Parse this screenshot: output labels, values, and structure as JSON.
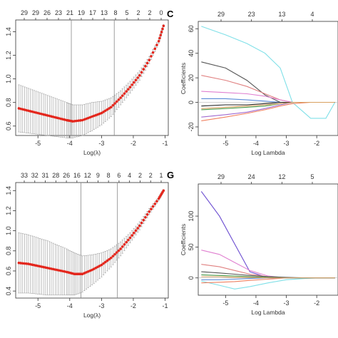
{
  "panel_letters": [
    "C",
    "G"
  ],
  "chart_data": [
    {
      "type": "scatter",
      "error_bars": true,
      "xlabel": "Log(λ)",
      "ylabel": "",
      "x_ticks": [
        "-5",
        "-4",
        "-3",
        "-2",
        "-1"
      ],
      "y_ticks": [
        "0.6",
        "0.8",
        "1.0",
        "1.2",
        "1.4"
      ],
      "top_ticks": [
        "29",
        "29",
        "26",
        "23",
        "21",
        "19",
        "17",
        "13",
        "8",
        "5",
        "2",
        "2",
        "0"
      ],
      "xlim": [
        -5.7,
        -0.9
      ],
      "ylim": [
        0.52,
        1.5
      ],
      "vlines": [
        -3.95,
        -2.6
      ],
      "colors": {
        "points": "#e3261c",
        "bars": "#9b9b9b"
      },
      "x": [
        -5.6,
        -5.3,
        -5.0,
        -4.7,
        -4.4,
        -4.1,
        -3.9,
        -3.6,
        -3.3,
        -3.0,
        -2.7,
        -2.4,
        -2.1,
        -1.8,
        -1.5,
        -1.2,
        -1.05
      ],
      "y": [
        0.75,
        0.73,
        0.71,
        0.69,
        0.67,
        0.65,
        0.64,
        0.65,
        0.68,
        0.71,
        0.76,
        0.84,
        0.93,
        1.03,
        1.16,
        1.32,
        1.45
      ],
      "err": [
        0.2,
        0.19,
        0.18,
        0.17,
        0.16,
        0.15,
        0.14,
        0.13,
        0.12,
        0.1,
        0.08,
        0.06,
        0.05,
        0.04,
        0.03,
        0.02,
        0.01
      ]
    },
    {
      "type": "line",
      "xlabel": "Log Lambda",
      "ylabel": "Coefficients",
      "x_ticks": [
        "-5",
        "-4",
        "-3",
        "-2"
      ],
      "y_ticks": [
        "-20",
        "0",
        "20",
        "40",
        "60"
      ],
      "top_ticks": [
        "29",
        "23",
        "13",
        "4"
      ],
      "xlim": [
        -5.9,
        -1.3
      ],
      "ylim": [
        -27,
        66
      ],
      "x": [
        -5.8,
        -5.0,
        -4.3,
        -3.7,
        -3.2,
        -2.8,
        -2.2,
        -1.7,
        -1.4
      ],
      "series": [
        {
          "color": "#7fe0e8",
          "values": [
            62,
            55,
            48,
            40,
            28,
            0,
            -13,
            -13,
            0
          ]
        },
        {
          "color": "#555555",
          "values": [
            33,
            28,
            18,
            6,
            0,
            0,
            0,
            0,
            0
          ]
        },
        {
          "color": "#e08080",
          "values": [
            22,
            18,
            13,
            7,
            2,
            0,
            0,
            0,
            0
          ]
        },
        {
          "color": "#e07fd0",
          "values": [
            9,
            8,
            7,
            5,
            2,
            0,
            0,
            0,
            0
          ]
        },
        {
          "color": "#a06ad0",
          "values": [
            -12,
            -10,
            -8,
            -5,
            -2,
            0,
            0,
            0,
            0
          ]
        },
        {
          "color": "#f08060",
          "values": [
            -15,
            -12,
            -9,
            -6,
            -3,
            -1,
            0,
            0,
            0
          ]
        },
        {
          "color": "#4a9a4a",
          "values": [
            -6,
            -5,
            -4,
            -3,
            -1,
            0,
            0,
            0,
            0
          ]
        },
        {
          "color": "#5a8ad8",
          "values": [
            3,
            3,
            2,
            1,
            0,
            0,
            0,
            0,
            0
          ]
        },
        {
          "color": "#222222",
          "values": [
            -3,
            -2,
            -2,
            -1,
            0,
            0,
            0,
            0,
            0
          ]
        },
        {
          "color": "#d8a060",
          "values": [
            -5,
            -4,
            -3,
            -2,
            -1,
            0,
            0,
            0,
            0
          ]
        }
      ]
    },
    {
      "type": "scatter",
      "error_bars": true,
      "xlabel": "Log(λ)",
      "ylabel": "",
      "x_ticks": [
        "-5",
        "-4",
        "-3",
        "-2",
        "-1"
      ],
      "y_ticks": [
        "0.4",
        "0.6",
        "0.8",
        "1.0",
        "1.2",
        "1.4"
      ],
      "top_ticks": [
        "33",
        "32",
        "31",
        "28",
        "26",
        "16",
        "12",
        "9",
        "8",
        "6",
        "4",
        "2",
        "2",
        "1"
      ],
      "xlim": [
        -5.7,
        -0.9
      ],
      "ylim": [
        0.33,
        1.48
      ],
      "vlines": [
        -3.65,
        -2.5
      ],
      "colors": {
        "points": "#e3261c",
        "bars": "#9b9b9b"
      },
      "x": [
        -5.6,
        -5.3,
        -5.0,
        -4.7,
        -4.4,
        -4.1,
        -3.85,
        -3.6,
        -3.3,
        -3.0,
        -2.7,
        -2.4,
        -2.1,
        -1.8,
        -1.5,
        -1.2,
        -1.05
      ],
      "y": [
        0.68,
        0.67,
        0.65,
        0.63,
        0.61,
        0.59,
        0.57,
        0.57,
        0.61,
        0.66,
        0.73,
        0.82,
        0.93,
        1.05,
        1.19,
        1.32,
        1.4
      ],
      "err": [
        0.3,
        0.29,
        0.28,
        0.27,
        0.25,
        0.23,
        0.21,
        0.18,
        0.15,
        0.12,
        0.09,
        0.07,
        0.05,
        0.04,
        0.03,
        0.02,
        0.01
      ]
    },
    {
      "type": "line",
      "xlabel": "Log Lambda",
      "ylabel": "Coefficients",
      "x_ticks": [
        "-5",
        "-4",
        "-3",
        "-2"
      ],
      "y_ticks": [
        "0",
        "50",
        "100"
      ],
      "top_ticks": [
        "29",
        "24",
        "12",
        "5"
      ],
      "xlim": [
        -5.9,
        -1.3
      ],
      "ylim": [
        -28,
        152
      ],
      "x": [
        -5.8,
        -5.2,
        -4.7,
        -4.2,
        -3.6,
        -3.0,
        -2.4,
        -1.9,
        -1.4
      ],
      "series": [
        {
          "color": "#6a4bd0",
          "values": [
            140,
            100,
            55,
            10,
            0,
            0,
            0,
            0,
            0
          ]
        },
        {
          "color": "#e07fd0",
          "values": [
            45,
            38,
            25,
            12,
            3,
            0,
            0,
            0,
            0
          ]
        },
        {
          "color": "#e08080",
          "values": [
            22,
            18,
            12,
            6,
            2,
            0,
            0,
            0,
            0
          ]
        },
        {
          "color": "#7fe0e8",
          "values": [
            -5,
            -12,
            -18,
            -14,
            -8,
            -3,
            -1,
            0,
            0
          ]
        },
        {
          "color": "#555555",
          "values": [
            10,
            8,
            6,
            4,
            2,
            1,
            0,
            0,
            0
          ]
        },
        {
          "color": "#f08060",
          "values": [
            -8,
            -7,
            -6,
            -4,
            -2,
            0,
            0,
            0,
            0
          ]
        },
        {
          "color": "#4a9a4a",
          "values": [
            5,
            4,
            3,
            2,
            1,
            0,
            0,
            0,
            0
          ]
        },
        {
          "color": "#5a8ad8",
          "values": [
            -3,
            -3,
            -2,
            -1,
            0,
            0,
            0,
            0,
            0
          ]
        },
        {
          "color": "#d8a060",
          "values": [
            2,
            2,
            1,
            1,
            0,
            0,
            0,
            0,
            0
          ]
        }
      ]
    }
  ]
}
